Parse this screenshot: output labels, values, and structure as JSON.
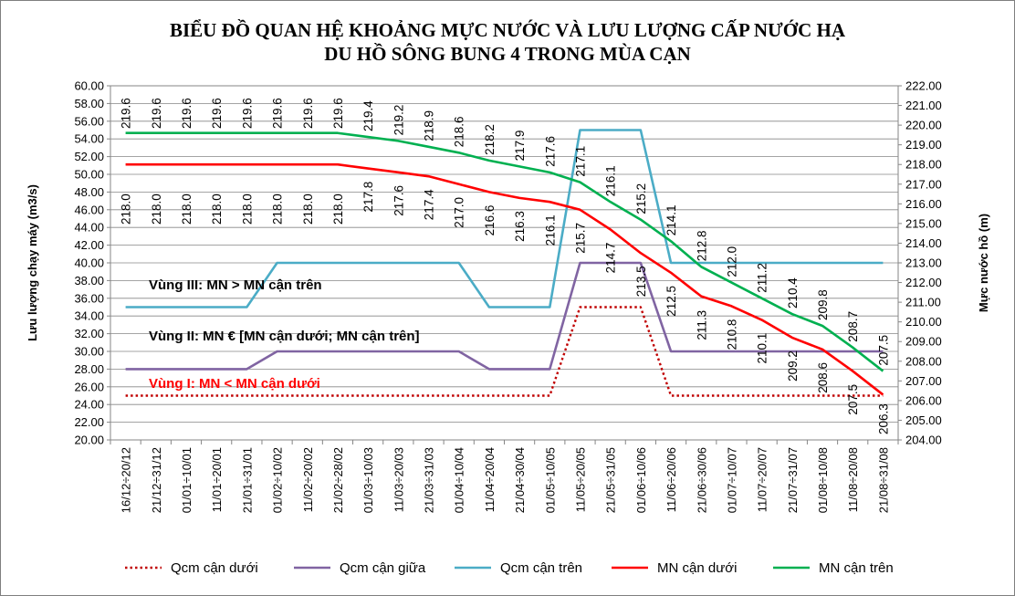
{
  "chart_data": {
    "type": "line",
    "title": [
      "BIỂU ĐỒ QUAN HỆ KHOẢNG MỰC NƯỚC VÀ LƯU LƯỢNG CẤP NƯỚC HẠ",
      "DU HỒ SÔNG BUNG 4 TRONG MÙA CẠN"
    ],
    "ylabel_left": "Lưu lượng chạy máy (m3/s)",
    "ylabel_right": "Mực nước hồ (m)",
    "ylim_left": [
      20,
      60
    ],
    "ylim_right": [
      204,
      222
    ],
    "yticks_left": [
      "60.00",
      "58.00",
      "56.00",
      "54.00",
      "52.00",
      "50.00",
      "48.00",
      "46.00",
      "44.00",
      "42.00",
      "40.00",
      "38.00",
      "36.00",
      "34.00",
      "32.00",
      "30.00",
      "28.00",
      "26.00",
      "24.00",
      "22.00",
      "20.00"
    ],
    "yticks_right": [
      "222.00",
      "221.00",
      "220.00",
      "219.00",
      "218.00",
      "217.00",
      "216.00",
      "215.00",
      "214.00",
      "213.00",
      "212.00",
      "211.00",
      "210.00",
      "209.00",
      "208.00",
      "207.00",
      "206.00",
      "205.00",
      "204.00"
    ],
    "categories": [
      "16/12÷20/12",
      "21/12÷31/12",
      "01/01÷10/01",
      "11/01÷20/01",
      "21/01÷31/01",
      "01/02÷10/02",
      "11/02÷20/02",
      "21/02÷28/02",
      "01/03÷10/03",
      "11/03÷20/03",
      "21/03÷31/03",
      "01/04÷10/04",
      "11/04÷20/04",
      "21/04÷30/04",
      "01/05÷10/05",
      "11/05÷20/05",
      "21/05÷31/05",
      "01/06÷10/06",
      "11/06÷20/06",
      "21/06÷30/06",
      "01/07÷10/07",
      "11/07÷20/07",
      "21/07÷31/07",
      "01/08÷10/08",
      "11/08÷20/08",
      "21/08÷31/08"
    ],
    "series": [
      {
        "name": "Qcm cận dưới",
        "axis": "left",
        "color": "#c00000",
        "style": "dotted",
        "values": [
          25,
          25,
          25,
          25,
          25,
          25,
          25,
          25,
          25,
          25,
          25,
          25,
          25,
          25,
          25,
          35,
          35,
          35,
          25,
          25,
          25,
          25,
          25,
          25,
          25,
          25
        ]
      },
      {
        "name": "Qcm cận giữa",
        "axis": "left",
        "color": "#8064a2",
        "style": "solid",
        "values": [
          28,
          28,
          28,
          28,
          28,
          30,
          30,
          30,
          30,
          30,
          30,
          30,
          28,
          28,
          28,
          40,
          40,
          40,
          30,
          30,
          30,
          30,
          30,
          30,
          30,
          30
        ]
      },
      {
        "name": "Qcm cận trên",
        "axis": "left",
        "color": "#4bacc6",
        "style": "solid",
        "values": [
          35,
          35,
          35,
          35,
          35,
          40,
          40,
          40,
          40,
          40,
          40,
          40,
          35,
          35,
          35,
          55,
          55,
          55,
          40,
          40,
          40,
          40,
          40,
          40,
          40,
          40
        ]
      },
      {
        "name": "MN cận dưới",
        "axis": "right",
        "color": "#ff0000",
        "style": "solid",
        "values": [
          218.0,
          218.0,
          218.0,
          218.0,
          218.0,
          218.0,
          218.0,
          218.0,
          217.8,
          217.6,
          217.4,
          217.0,
          216.6,
          216.3,
          216.1,
          215.7,
          214.7,
          213.5,
          212.5,
          211.3,
          210.8,
          210.1,
          209.2,
          208.6,
          207.5,
          206.3
        ]
      },
      {
        "name": "MN cận trên",
        "axis": "right",
        "color": "#00b050",
        "style": "solid",
        "values": [
          219.6,
          219.6,
          219.6,
          219.6,
          219.6,
          219.6,
          219.6,
          219.6,
          219.4,
          219.2,
          218.9,
          218.6,
          218.2,
          217.9,
          217.6,
          217.1,
          216.1,
          215.2,
          214.1,
          212.8,
          212.0,
          211.2,
          210.4,
          209.8,
          208.7,
          207.5
        ]
      }
    ],
    "labels_upper": [
      "219.6",
      "219.6",
      "219.6",
      "219.6",
      "219.6",
      "219.6",
      "219.6",
      "219.6",
      "219.4",
      "219.2",
      "218.9",
      "218.6",
      "218.2",
      "217.9",
      "217.6",
      "217.1",
      "216.1",
      "215.2",
      "214.1",
      "212.8",
      "212.0",
      "211.2",
      "210.4",
      "209.8",
      "208.7",
      "207.5"
    ],
    "labels_lower": [
      "218.0",
      "218.0",
      "218.0",
      "218.0",
      "218.0",
      "218.0",
      "218.0",
      "218.0",
      "217.8",
      "217.6",
      "217.4",
      "217.0",
      "216.6",
      "216.3",
      "216.1",
      "215.7",
      "214.7",
      "213.5",
      "212.5",
      "211.3",
      "210.8",
      "210.1",
      "209.2",
      "208.6",
      "207.5",
      "206.3"
    ],
    "annotations": [
      {
        "text": "Vùng III: MN > MN cận trên",
        "color": "#000000"
      },
      {
        "text": "Vùng II: MN € [MN cận dưới; MN cận trên]",
        "color": "#000000"
      },
      {
        "text": "Vùng I: MN < MN cận dưới",
        "color": "#ff0000"
      }
    ],
    "legend_position": "bottom",
    "grid": true
  }
}
